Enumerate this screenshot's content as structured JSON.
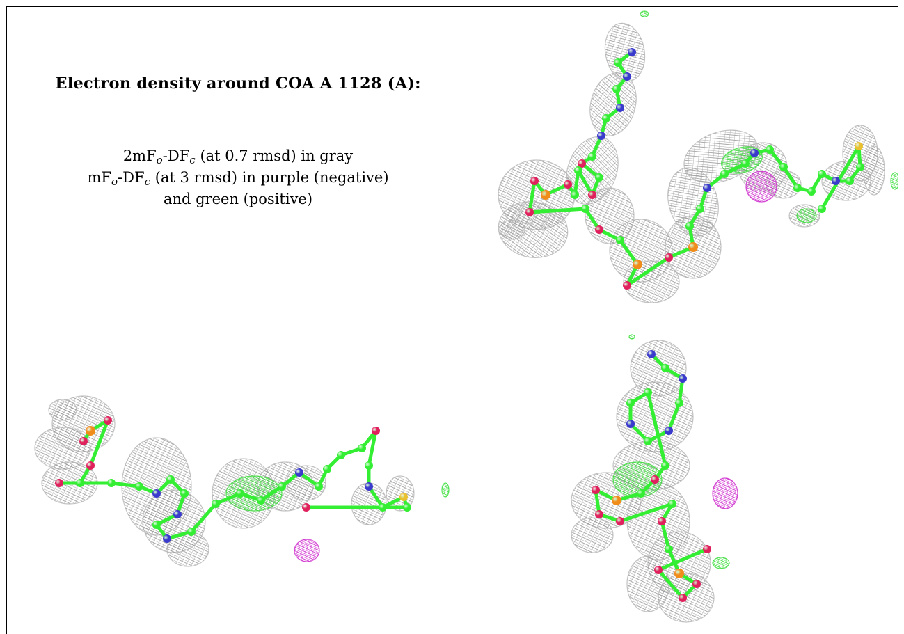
{
  "caption": {
    "title": "Electron density around COA A 1128 (A):",
    "line1": {
      "prefix": "2mF",
      "sub1": "o",
      "mid": "-DF",
      "sub2": "c",
      "suffix": " (at 0.7 rmsd) in gray"
    },
    "line2": {
      "prefix": "mF",
      "sub1": "o",
      "mid": "-DF",
      "sub2": "c",
      "suffix": " (at 3 rmsd) in purple (negative)"
    },
    "line3": "and green (positive)"
  },
  "colors": {
    "mesh_2fofc": "#9a9a9a",
    "mesh_negative": "#cc22cc",
    "mesh_positive": "#33dd33",
    "carbon": "#33ee33",
    "oxygen": "#e0205c",
    "nitrogen": "#3a3acc",
    "phosphorus": "#f08c1a",
    "sulfur": "#e8c030"
  }
}
